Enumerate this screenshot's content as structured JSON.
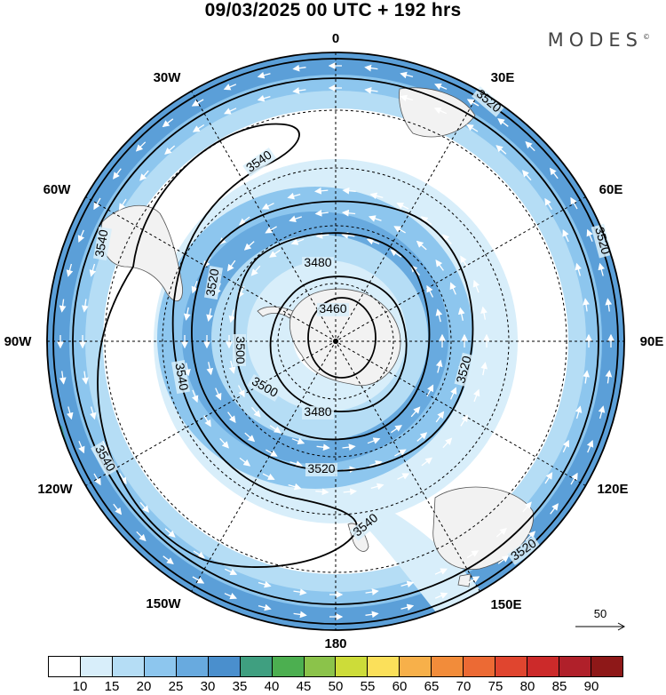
{
  "title": "09/03/2025  00 UTC  + 192 hrs",
  "brand": "MODES",
  "brand_mark": "©",
  "longitude_labels": [
    "0",
    "30E",
    "60E",
    "90E",
    "120E",
    "150E",
    "180",
    "150W",
    "120W",
    "90W",
    "60W",
    "30W"
  ],
  "contour_labels": [
    "3460",
    "3480",
    "3480",
    "3500",
    "3500",
    "3520",
    "3520",
    "3520",
    "3520",
    "3520",
    "3520",
    "3540",
    "3540",
    "3540",
    "3540",
    "3540"
  ],
  "colorbar": {
    "labels": [
      "10",
      "15",
      "20",
      "25",
      "30",
      "35",
      "40",
      "45",
      "50",
      "55",
      "60",
      "65",
      "70",
      "75",
      "80",
      "85",
      "90"
    ],
    "colors": [
      "#ffffff",
      "#d8eefa",
      "#b5ddf5",
      "#8dc6ee",
      "#68aadf",
      "#4a8fcd",
      "#3f9f80",
      "#4caf50",
      "#8bc34a",
      "#cddc39",
      "#fbe05a",
      "#f7b04a",
      "#f28c3a",
      "#ec6a34",
      "#e0452f",
      "#cc2a2a",
      "#b0202a",
      "#8e1818"
    ]
  },
  "vector_reference": "50",
  "icons": {
    "center-pole": "pole-dot-icon",
    "reference-arrow": "arrow-right-icon"
  }
}
